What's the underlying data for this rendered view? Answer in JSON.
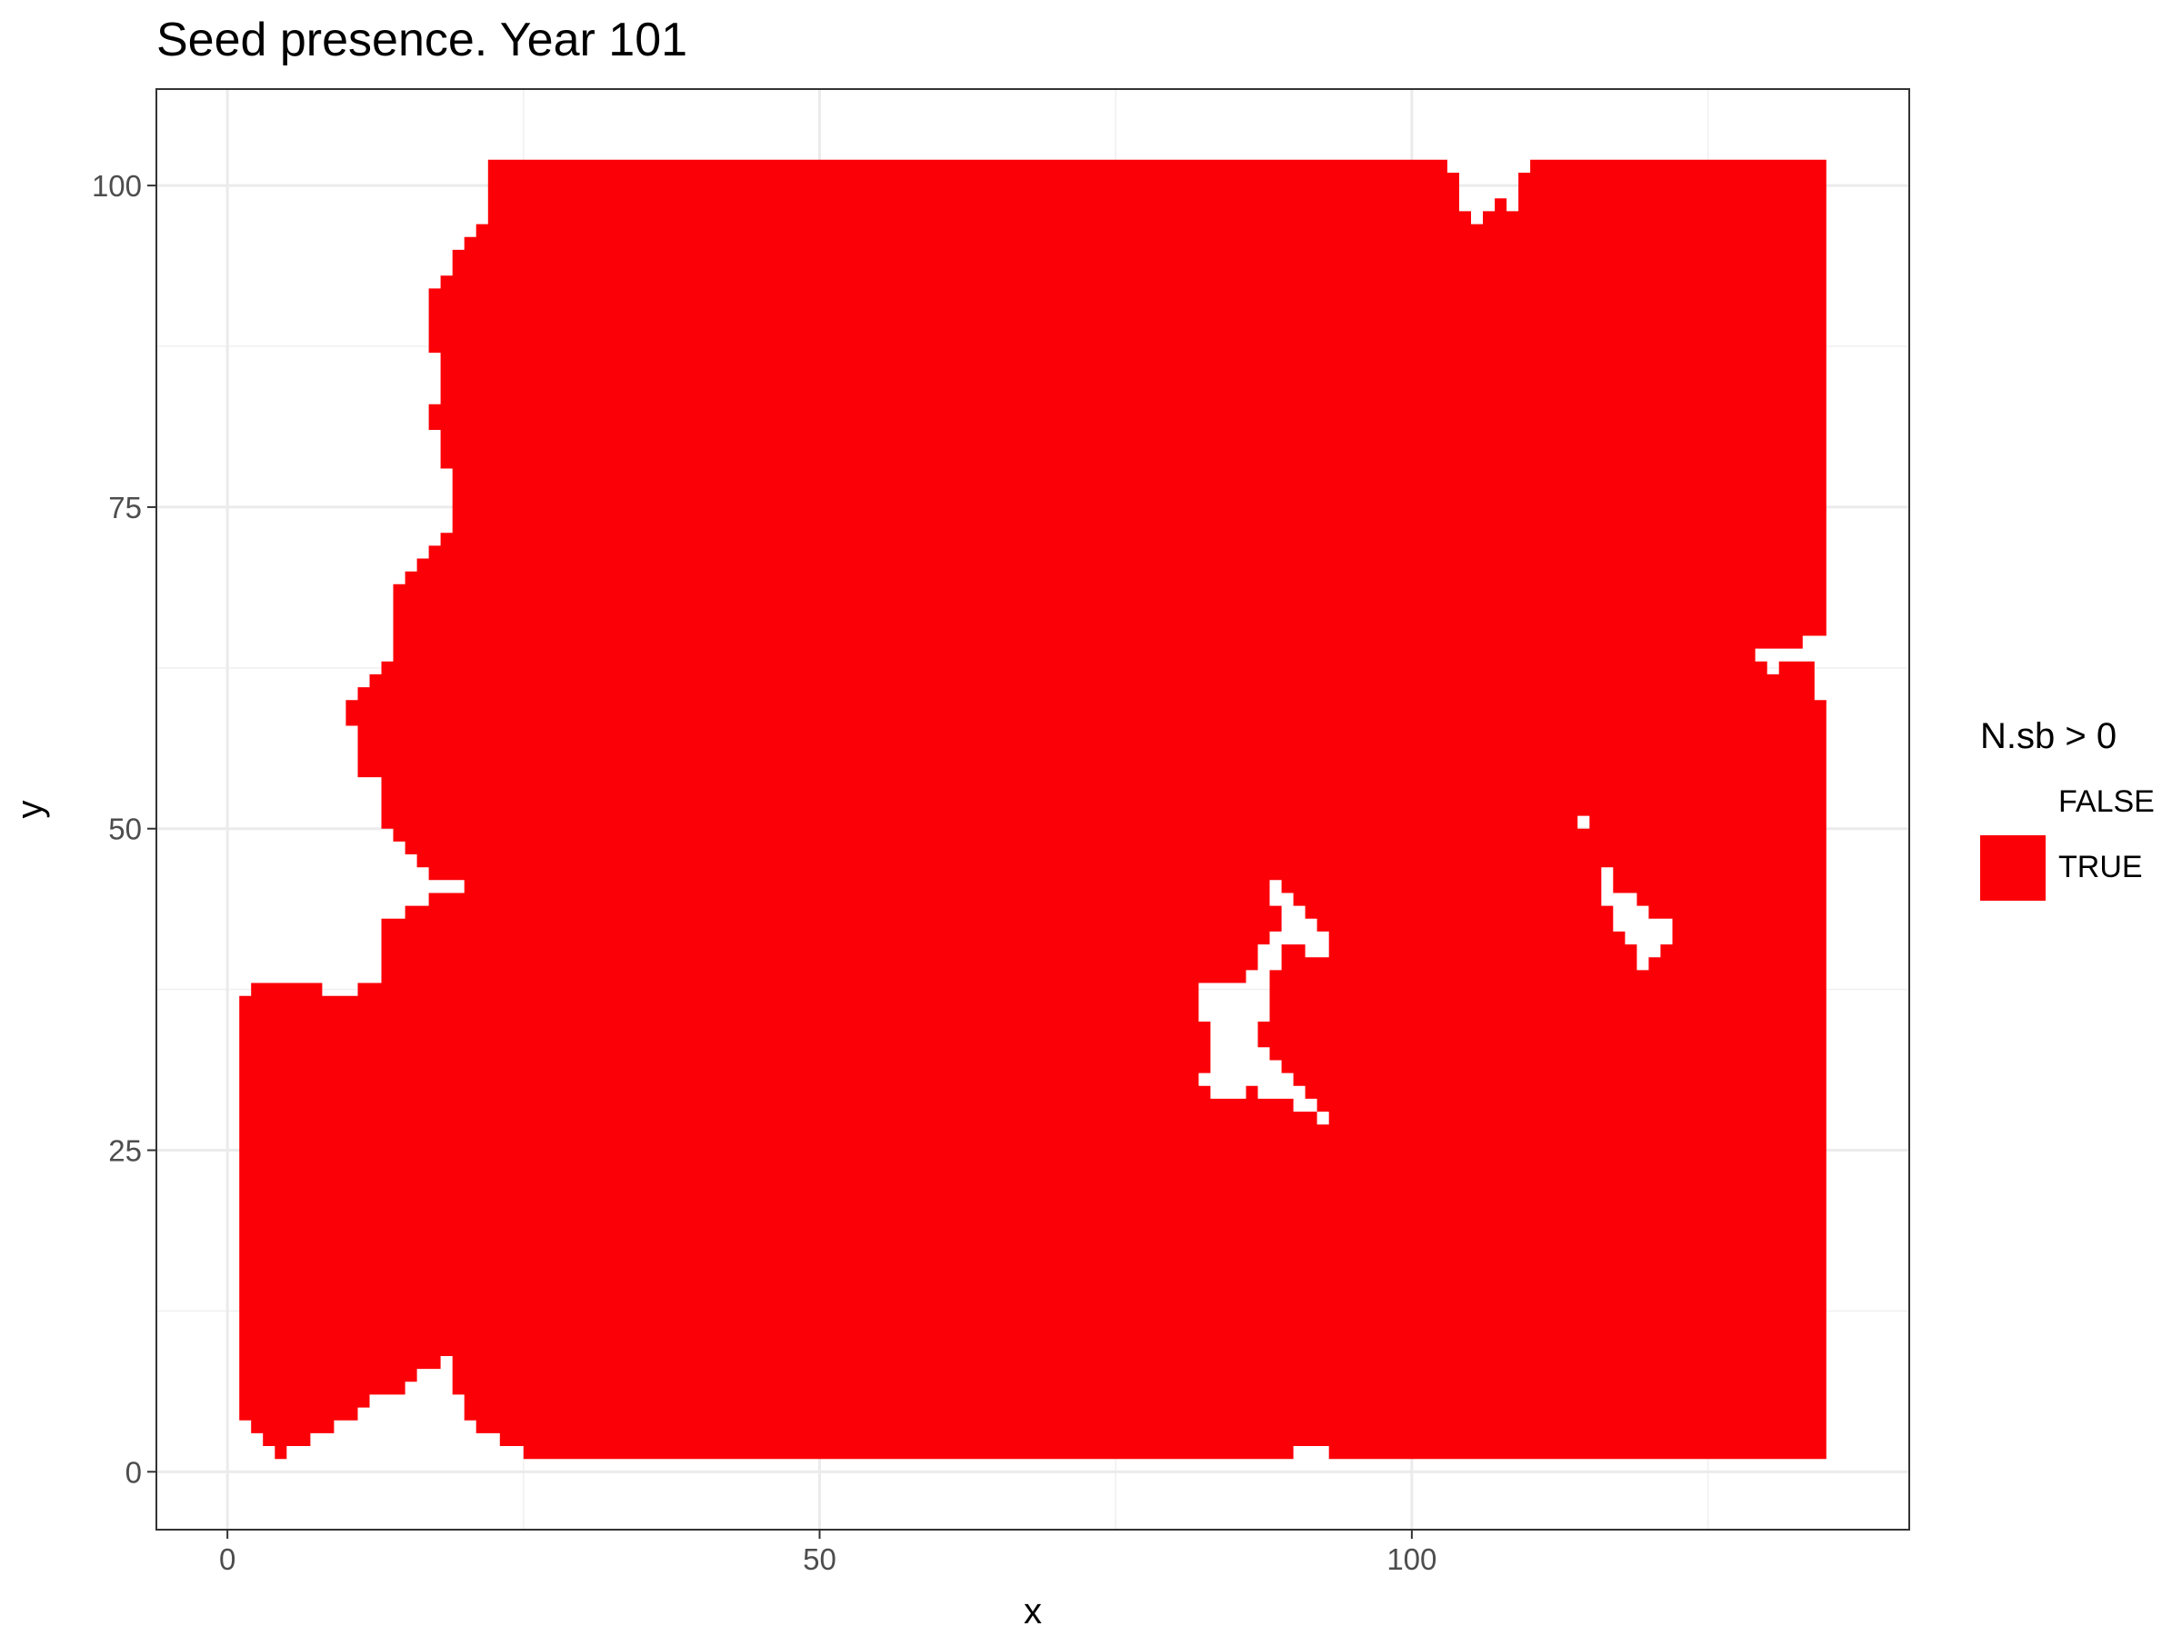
{
  "chart_data": {
    "type": "heatmap",
    "title": "Seed presence. Year 101",
    "xlabel": "x",
    "ylabel": "y",
    "xlim": [
      -6,
      142
    ],
    "ylim": [
      -4.5,
      107.5
    ],
    "x_ticks": [
      0,
      50,
      100
    ],
    "y_ticks": [
      0,
      25,
      50,
      75,
      100
    ],
    "grid": true,
    "legend": {
      "title": "N.sb > 0",
      "placement": "right",
      "entries": [
        {
          "label": "FALSE",
          "color": "#ffffff"
        },
        {
          "label": "TRUE",
          "color": "#fb0007"
        }
      ]
    },
    "grid_extent": {
      "x": [
        1,
        135
      ],
      "y": [
        1,
        102
      ]
    },
    "true_region_outline": [
      [
        22,
        102
      ],
      [
        103,
        102
      ],
      [
        103,
        101
      ],
      [
        104,
        101
      ],
      [
        104,
        98
      ],
      [
        105,
        98
      ],
      [
        105,
        97
      ],
      [
        106,
        97
      ],
      [
        106,
        98
      ],
      [
        107,
        98
      ],
      [
        107,
        99
      ],
      [
        108,
        99
      ],
      [
        108,
        98
      ],
      [
        109,
        98
      ],
      [
        109,
        101
      ],
      [
        110,
        101
      ],
      [
        110,
        102
      ],
      [
        135,
        102
      ],
      [
        135,
        65
      ],
      [
        133,
        65
      ],
      [
        133,
        64
      ],
      [
        129,
        64
      ],
      [
        129,
        63
      ],
      [
        130,
        63
      ],
      [
        130,
        62
      ],
      [
        131,
        62
      ],
      [
        131,
        63
      ],
      [
        134,
        63
      ],
      [
        134,
        60
      ],
      [
        135,
        60
      ],
      [
        135,
        1
      ],
      [
        93,
        1
      ],
      [
        93,
        2
      ],
      [
        90,
        2
      ],
      [
        90,
        1
      ],
      [
        25,
        1
      ],
      [
        25,
        2
      ],
      [
        23,
        2
      ],
      [
        23,
        3
      ],
      [
        21,
        3
      ],
      [
        21,
        4
      ],
      [
        20,
        4
      ],
      [
        20,
        6
      ],
      [
        19,
        6
      ],
      [
        19,
        9
      ],
      [
        18,
        9
      ],
      [
        18,
        8
      ],
      [
        16,
        8
      ],
      [
        16,
        7
      ],
      [
        15,
        7
      ],
      [
        15,
        6
      ],
      [
        12,
        6
      ],
      [
        12,
        5
      ],
      [
        11,
        5
      ],
      [
        11,
        4
      ],
      [
        9,
        4
      ],
      [
        9,
        3
      ],
      [
        7,
        3
      ],
      [
        7,
        2
      ],
      [
        5,
        2
      ],
      [
        5,
        1
      ],
      [
        4,
        1
      ],
      [
        4,
        2
      ],
      [
        3,
        2
      ],
      [
        3,
        3
      ],
      [
        2,
        3
      ],
      [
        2,
        4
      ],
      [
        1,
        4
      ],
      [
        1,
        37
      ],
      [
        2,
        37
      ],
      [
        2,
        38
      ],
      [
        8,
        38
      ],
      [
        8,
        37
      ],
      [
        11,
        37
      ],
      [
        11,
        38
      ],
      [
        13,
        38
      ],
      [
        13,
        43
      ],
      [
        15,
        43
      ],
      [
        15,
        44
      ],
      [
        17,
        44
      ],
      [
        17,
        45
      ],
      [
        20,
        45
      ],
      [
        20,
        46
      ],
      [
        17,
        46
      ],
      [
        17,
        47
      ],
      [
        16,
        47
      ],
      [
        16,
        48
      ],
      [
        15,
        48
      ],
      [
        15,
        49
      ],
      [
        14,
        49
      ],
      [
        14,
        50
      ],
      [
        13,
        50
      ],
      [
        13,
        54
      ],
      [
        11,
        54
      ],
      [
        11,
        58
      ],
      [
        10,
        58
      ],
      [
        10,
        60
      ],
      [
        11,
        60
      ],
      [
        11,
        61
      ],
      [
        12,
        61
      ],
      [
        12,
        62
      ],
      [
        13,
        62
      ],
      [
        13,
        63
      ],
      [
        14,
        63
      ],
      [
        14,
        69
      ],
      [
        15,
        69
      ],
      [
        15,
        70
      ],
      [
        16,
        70
      ],
      [
        16,
        71
      ],
      [
        17,
        71
      ],
      [
        17,
        72
      ],
      [
        18,
        72
      ],
      [
        18,
        73
      ],
      [
        19,
        73
      ],
      [
        19,
        78
      ],
      [
        18,
        78
      ],
      [
        18,
        81
      ],
      [
        17,
        81
      ],
      [
        17,
        83
      ],
      [
        18,
        83
      ],
      [
        18,
        87
      ],
      [
        17,
        87
      ],
      [
        17,
        92
      ],
      [
        18,
        92
      ],
      [
        18,
        93
      ],
      [
        19,
        93
      ],
      [
        19,
        95
      ],
      [
        20,
        95
      ],
      [
        20,
        96
      ],
      [
        21,
        96
      ],
      [
        21,
        97
      ],
      [
        22,
        97
      ]
    ],
    "false_holes": [
      [
        [
          82,
          37
        ],
        [
          82,
          38
        ],
        [
          86,
          38
        ],
        [
          86,
          39
        ],
        [
          87,
          39
        ],
        [
          87,
          41
        ],
        [
          88,
          41
        ],
        [
          88,
          42
        ],
        [
          89,
          42
        ],
        [
          89,
          44
        ],
        [
          88,
          44
        ],
        [
          88,
          46
        ],
        [
          89,
          46
        ],
        [
          89,
          45
        ],
        [
          90,
          45
        ],
        [
          90,
          44
        ],
        [
          91,
          44
        ],
        [
          91,
          43
        ],
        [
          92,
          43
        ],
        [
          92,
          42
        ],
        [
          93,
          42
        ],
        [
          93,
          40
        ],
        [
          91,
          40
        ],
        [
          91,
          41
        ],
        [
          89,
          41
        ],
        [
          89,
          39
        ],
        [
          88,
          39
        ],
        [
          88,
          35
        ],
        [
          87,
          35
        ],
        [
          87,
          33
        ],
        [
          88,
          33
        ],
        [
          88,
          32
        ],
        [
          89,
          32
        ],
        [
          89,
          31
        ],
        [
          90,
          31
        ],
        [
          90,
          30
        ],
        [
          91,
          30
        ],
        [
          91,
          29
        ],
        [
          92,
          29
        ],
        [
          92,
          28
        ],
        [
          93,
          28
        ],
        [
          93,
          27
        ],
        [
          92,
          27
        ],
        [
          92,
          28
        ],
        [
          90,
          28
        ],
        [
          90,
          29
        ],
        [
          87,
          29
        ],
        [
          87,
          30
        ],
        [
          86,
          30
        ],
        [
          86,
          29
        ],
        [
          83,
          29
        ],
        [
          83,
          30
        ],
        [
          82,
          30
        ],
        [
          82,
          31
        ],
        [
          83,
          31
        ],
        [
          83,
          35
        ],
        [
          82,
          35
        ]
      ],
      [
        [
          114,
          50
        ],
        [
          114,
          51
        ],
        [
          115,
          51
        ],
        [
          115,
          50
        ]
      ],
      [
        [
          116,
          47
        ],
        [
          116,
          44
        ],
        [
          117,
          44
        ],
        [
          117,
          42
        ],
        [
          118,
          42
        ],
        [
          118,
          41
        ],
        [
          119,
          41
        ],
        [
          119,
          39
        ],
        [
          120,
          39
        ],
        [
          120,
          40
        ],
        [
          121,
          40
        ],
        [
          121,
          41
        ],
        [
          122,
          41
        ],
        [
          122,
          43
        ],
        [
          120,
          43
        ],
        [
          120,
          44
        ],
        [
          119,
          44
        ],
        [
          119,
          45
        ],
        [
          117,
          45
        ],
        [
          117,
          47
        ]
      ]
    ]
  }
}
